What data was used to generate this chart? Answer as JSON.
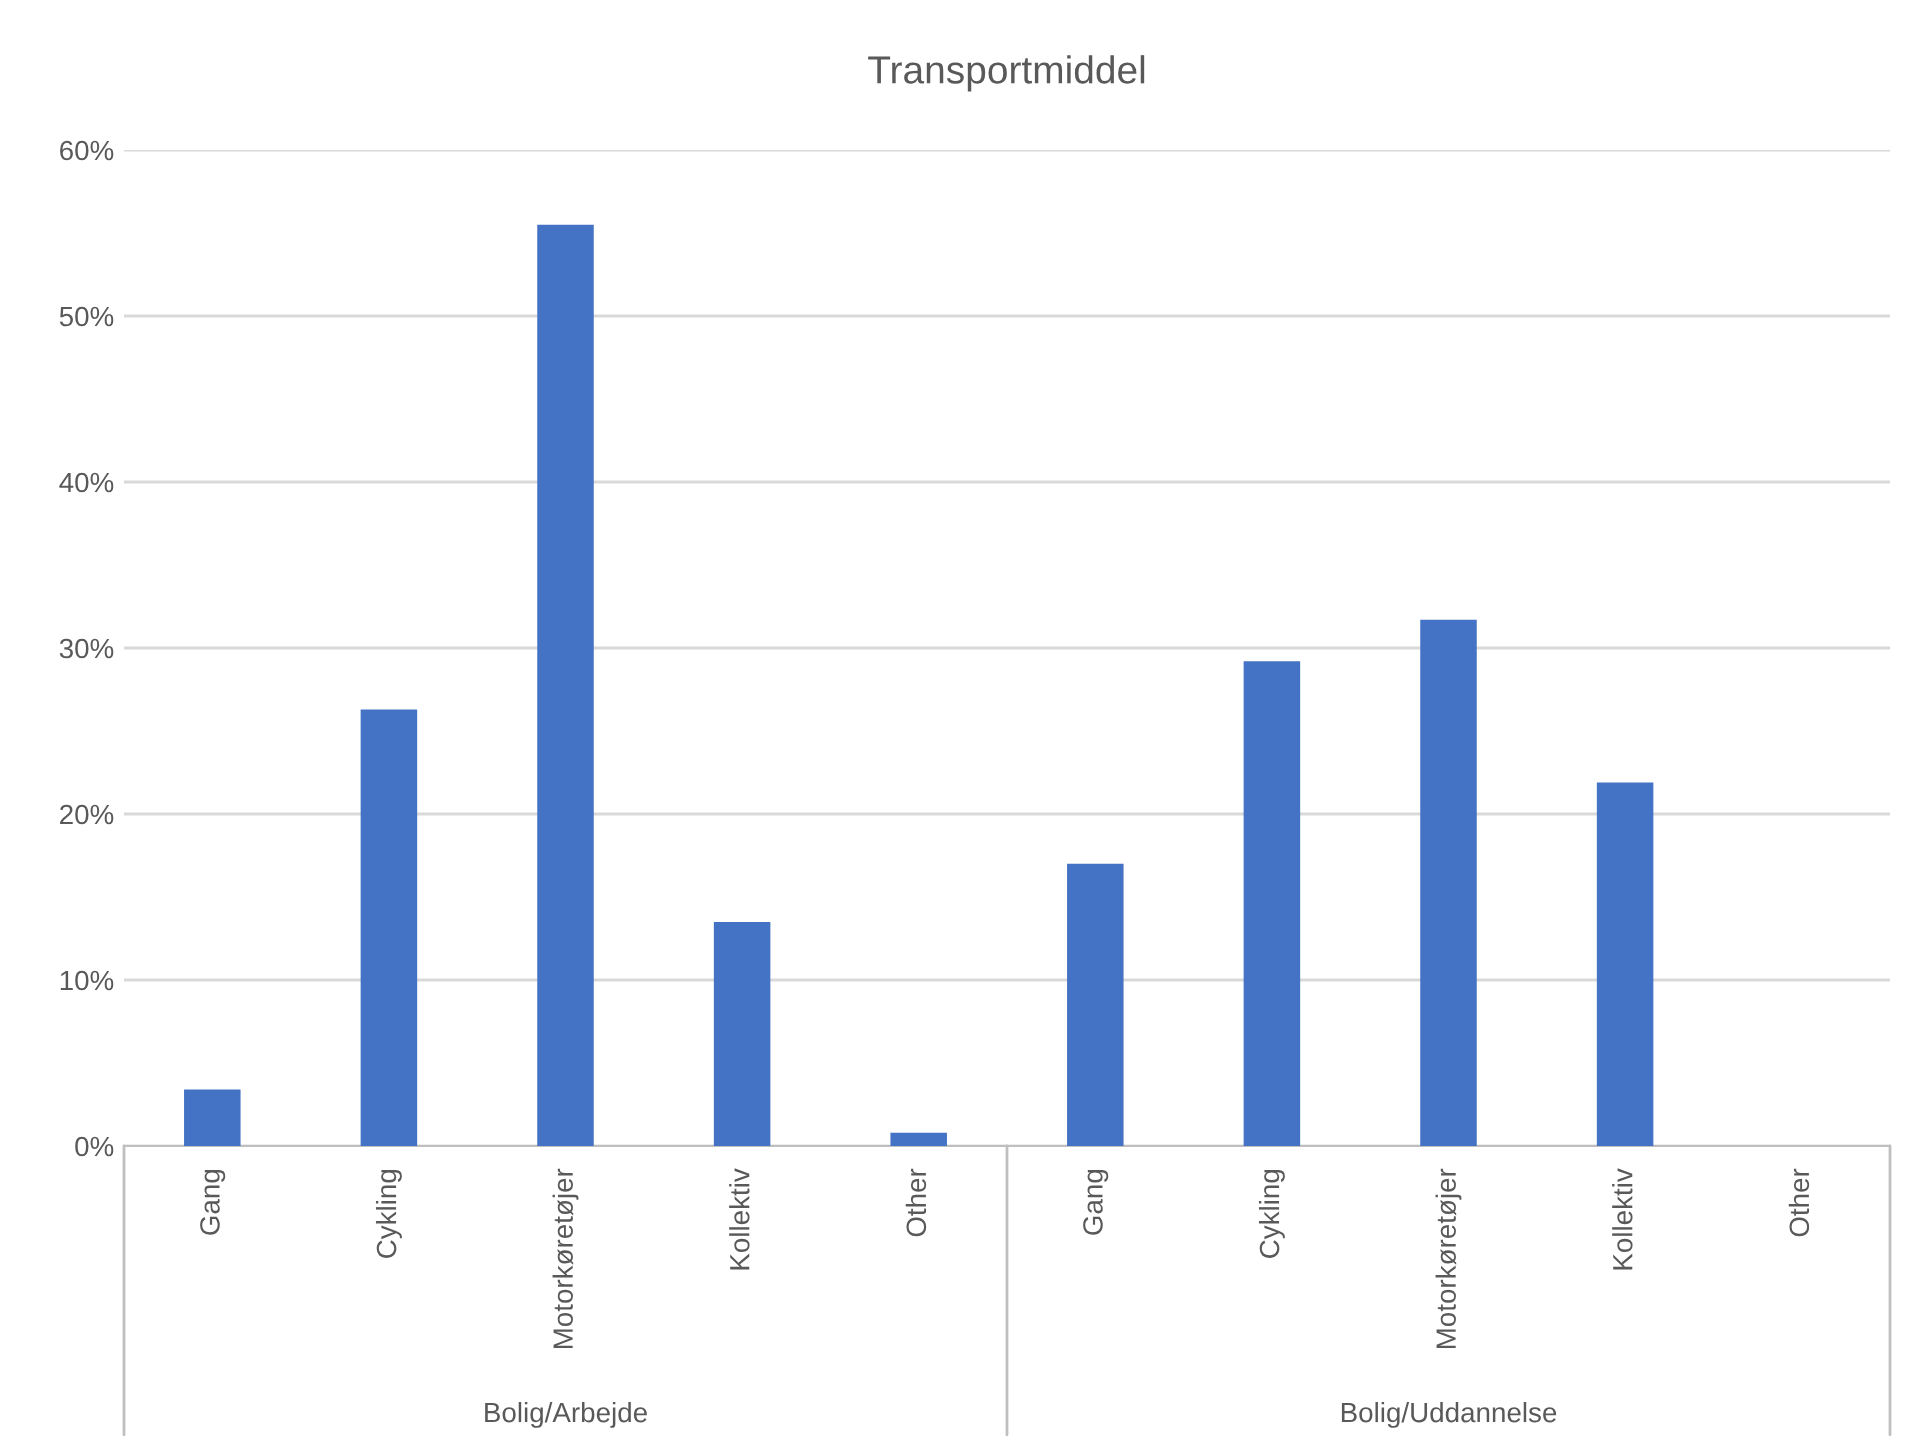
{
  "chart_data": {
    "type": "bar",
    "title": "Transportmiddel",
    "categories": [
      "Gang",
      "Cykling",
      "Motorkøretøjer",
      "Kollektiv",
      "Other",
      "Gang",
      "Cykling",
      "Motorkøretøjer",
      "Kollektiv",
      "Other"
    ],
    "values": [
      3.4,
      26.3,
      55.5,
      13.5,
      0.8,
      17.0,
      29.2,
      31.7,
      21.9,
      0
    ],
    "color": "#4472c4",
    "ylim": [
      0,
      60
    ],
    "yticks": [
      {
        "value": 0,
        "label": "0%"
      },
      {
        "value": 10,
        "label": "10%"
      },
      {
        "value": 20,
        "label": "20%"
      },
      {
        "value": 30,
        "label": "30%"
      },
      {
        "value": 40,
        "label": "40%"
      },
      {
        "value": 50,
        "label": "50%"
      },
      {
        "value": 60,
        "label": "60%"
      }
    ],
    "grid": "y",
    "annotations": [
      "Bolig/Arbejde",
      "Bolig/Uddannelse"
    ]
  }
}
